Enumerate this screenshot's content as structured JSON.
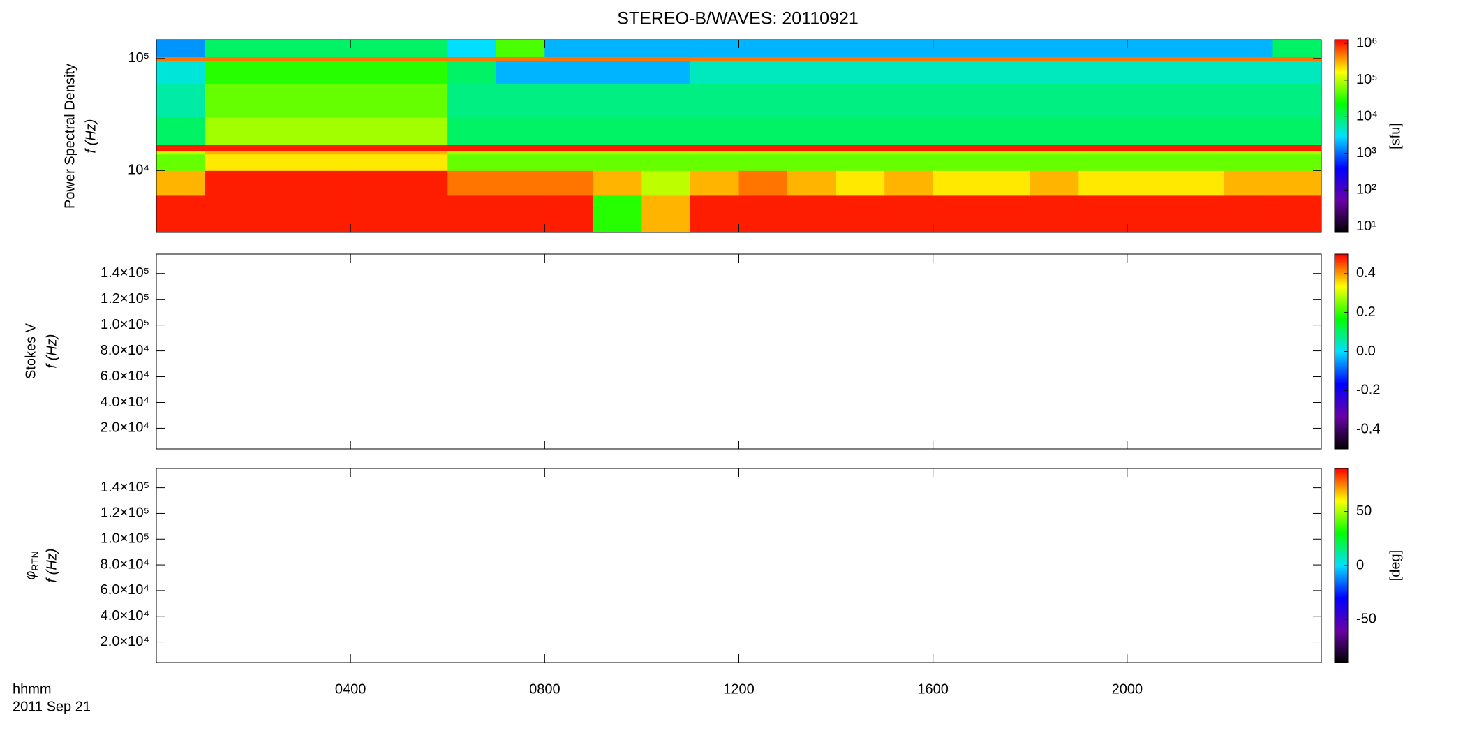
{
  "chart_data": [
    {
      "type": "heatmap",
      "title": "STEREO-B/WAVES: 20110921",
      "ylabel": [
        "Power Spectral Density",
        "f (Hz)"
      ],
      "xlim": [
        0,
        24
      ],
      "xticks": [
        4,
        8,
        12,
        16,
        20
      ],
      "ylim": [
        2800,
        147000
      ],
      "ylog": true,
      "yticks": [
        {
          "value": 10000,
          "label": "10⁴"
        },
        {
          "value": 100000,
          "label": "10⁵"
        }
      ],
      "clim": [
        7,
        1260000
      ],
      "clog": true,
      "cticks": [
        {
          "value": 10,
          "label": "10¹"
        },
        {
          "value": 100,
          "label": "10²"
        },
        {
          "value": 1000,
          "label": "10³"
        },
        {
          "value": 10000,
          "label": "10⁴"
        },
        {
          "value": 100000,
          "label": "10⁵"
        },
        {
          "value": 1000000,
          "label": "10⁶"
        }
      ],
      "clabel": "[sfu]",
      "colormap": [
        "#000000",
        "#6a00a8",
        "#0000ff",
        "#00e0ff",
        "#00ff00",
        "#ffff00",
        "#ff0000"
      ],
      "x": [
        0,
        1,
        2,
        3,
        4,
        5,
        6,
        7,
        8,
        9,
        10,
        11,
        12,
        13,
        14,
        15,
        16,
        17,
        18,
        19,
        20,
        21,
        22,
        23,
        24
      ],
      "y": [
        2800,
        6000,
        10000,
        14000,
        15000,
        17000,
        30000,
        60000,
        95000,
        105000,
        147000
      ],
      "z": [
        [
          1000000.0,
          1000000.0,
          1000000.0,
          1000000.0,
          1000000.0,
          1000000.0,
          1000000.0,
          1000000.0,
          1000000.0,
          30000.0,
          300000.0,
          1000000.0,
          1000000.0,
          1000000.0,
          1000000.0,
          1000000.0,
          1000000.0,
          1000000.0,
          1000000.0,
          1000000.0,
          1000000.0,
          1000000.0,
          1000000.0,
          1000000.0
        ],
        [
          300000.0,
          1000000.0,
          1000000.0,
          1000000.0,
          1000000.0,
          1000000.0,
          500000.0,
          500000.0,
          500000.0,
          300000.0,
          100000.0,
          300000.0,
          500000.0,
          300000.0,
          200000.0,
          300000.0,
          200000.0,
          200000.0,
          300000.0,
          200000.0,
          200000.0,
          200000.0,
          300000.0,
          300000.0
        ],
        [
          50000.0,
          200000.0,
          200000.0,
          200000.0,
          200000.0,
          200000.0,
          50000.0,
          50000.0,
          50000.0,
          50000.0,
          50000.0,
          50000.0,
          50000.0,
          50000.0,
          50000.0,
          50000.0,
          50000.0,
          50000.0,
          50000.0,
          50000.0,
          50000.0,
          50000.0,
          50000.0,
          50000.0
        ],
        [
          100000.0,
          300000.0,
          300000.0,
          300000.0,
          300000.0,
          300000.0,
          80000.0,
          80000.0,
          80000.0,
          80000.0,
          80000.0,
          80000.0,
          80000.0,
          80000.0,
          80000.0,
          80000.0,
          80000.0,
          80000.0,
          80000.0,
          80000.0,
          80000.0,
          80000.0,
          80000.0,
          80000.0
        ],
        [
          1000000.0,
          1000000.0,
          1000000.0,
          1000000.0,
          1000000.0,
          1000000.0,
          1000000.0,
          1000000.0,
          1000000.0,
          1000000.0,
          1000000.0,
          1000000.0,
          1000000.0,
          1000000.0,
          1000000.0,
          1000000.0,
          1000000.0,
          1000000.0,
          1000000.0,
          1000000.0,
          1000000.0,
          1000000.0,
          1000000.0,
          1000000.0
        ],
        [
          10000.0,
          80000.0,
          80000.0,
          80000.0,
          80000.0,
          80000.0,
          10000.0,
          10000.0,
          10000.0,
          10000.0,
          10000.0,
          10000.0,
          10000.0,
          10000.0,
          10000.0,
          10000.0,
          10000.0,
          10000.0,
          10000.0,
          10000.0,
          10000.0,
          10000.0,
          10000.0,
          10000.0
        ],
        [
          6000.0,
          50000.0,
          50000.0,
          50000.0,
          50000.0,
          50000.0,
          8000.0,
          8000.0,
          8000.0,
          8000.0,
          8000.0,
          8000.0,
          8000.0,
          8000.0,
          8000.0,
          8000.0,
          8000.0,
          8000.0,
          8000.0,
          8000.0,
          8000.0,
          8000.0,
          8000.0,
          8000.0
        ],
        [
          4000.0,
          30000.0,
          30000.0,
          30000.0,
          30000.0,
          30000.0,
          10000.0,
          2000.0,
          2000.0,
          2000.0,
          2000.0,
          5000.0,
          5000.0,
          5000.0,
          5000.0,
          5000.0,
          5000.0,
          5000.0,
          5000.0,
          5000.0,
          5000.0,
          5000.0,
          5000.0,
          5000.0
        ],
        [
          500000.0,
          500000.0,
          500000.0,
          500000.0,
          500000.0,
          500000.0,
          500000.0,
          500000.0,
          500000.0,
          500000.0,
          500000.0,
          500000.0,
          500000.0,
          500000.0,
          500000.0,
          500000.0,
          500000.0,
          500000.0,
          500000.0,
          500000.0,
          500000.0,
          500000.0,
          500000.0,
          500000.0
        ],
        [
          1500.0,
          10000.0,
          10000.0,
          10000.0,
          10000.0,
          10000.0,
          3000.0,
          40000.0,
          2000.0,
          2000.0,
          2000.0,
          2000.0,
          2000.0,
          2000.0,
          2000.0,
          2000.0,
          2000.0,
          2000.0,
          2000.0,
          2000.0,
          2000.0,
          2000.0,
          2000.0,
          10000.0
        ]
      ]
    },
    {
      "type": "heatmap",
      "ylabel": [
        "Stokes V",
        "f (Hz)"
      ],
      "xlim": [
        0,
        24
      ],
      "xticks": [
        4,
        8,
        12,
        16,
        20
      ],
      "ylim": [
        4000,
        155000
      ],
      "ylog": false,
      "yticks": [
        {
          "value": 20000,
          "label": "2.0×10⁴"
        },
        {
          "value": 40000,
          "label": "4.0×10⁴"
        },
        {
          "value": 60000,
          "label": "6.0×10⁴"
        },
        {
          "value": 80000,
          "label": "8.0×10⁴"
        },
        {
          "value": 100000,
          "label": "1.0×10⁵"
        },
        {
          "value": 120000,
          "label": "1.2×10⁵"
        },
        {
          "value": 140000,
          "label": "1.4×10⁵"
        }
      ],
      "clim": [
        -0.5,
        0.5
      ],
      "clog": false,
      "cticks": [
        -0.4,
        -0.2,
        {
          "value": 0,
          "label": "0.0"
        },
        0.2,
        0.4
      ],
      "colormap": [
        "#000000",
        "#6a00a8",
        "#0000ff",
        "#00e0ff",
        "#00ff00",
        "#ffff00",
        "#ff0000"
      ]
    },
    {
      "type": "heatmap",
      "ylabel": [
        "φ",
        "RTN",
        "f (Hz)"
      ],
      "xlabel": "hhmm",
      "date": "2011 Sep 21",
      "xlim": [
        0,
        24
      ],
      "xticks": [
        {
          "value": 4,
          "label": "0400"
        },
        {
          "value": 8,
          "label": "0800"
        },
        {
          "value": 12,
          "label": "1200"
        },
        {
          "value": 16,
          "label": "1600"
        },
        {
          "value": 20,
          "label": "2000"
        }
      ],
      "ylim": [
        4000,
        155000
      ],
      "ylog": false,
      "yticks": [
        {
          "value": 20000,
          "label": "2.0×10⁴"
        },
        {
          "value": 40000,
          "label": "4.0×10⁴"
        },
        {
          "value": 60000,
          "label": "6.0×10⁴"
        },
        {
          "value": 80000,
          "label": "8.0×10⁴"
        },
        {
          "value": 100000,
          "label": "1.0×10⁵"
        },
        {
          "value": 120000,
          "label": "1.2×10⁵"
        },
        {
          "value": 140000,
          "label": "1.4×10⁵"
        }
      ],
      "clim": [
        -90,
        90
      ],
      "clog": false,
      "cticks": [
        -50,
        0,
        50
      ],
      "clabel": "[deg]",
      "colormap": [
        "#000000",
        "#6a00a8",
        "#0000ff",
        "#00e0ff",
        "#00ff00",
        "#ffff00",
        "#ff0000"
      ]
    }
  ]
}
